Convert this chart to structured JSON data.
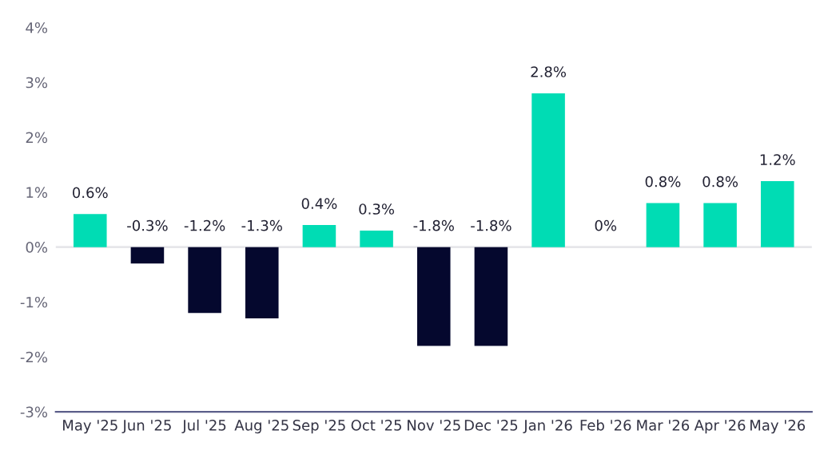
{
  "chart_data": {
    "type": "bar",
    "categories": [
      "May '25",
      "Jun '25",
      "Jul '25",
      "Aug '25",
      "Sep '25",
      "Oct '25",
      "Nov '25",
      "Dec '25",
      "Jan '26",
      "Feb '26",
      "Mar '26",
      "Apr '26",
      "May '26"
    ],
    "values": [
      0.6,
      -0.3,
      -1.2,
      -1.3,
      0.4,
      0.3,
      -1.8,
      -1.8,
      2.8,
      0,
      0.8,
      0.8,
      1.2
    ],
    "colors": [
      "#00dcb4",
      "#05082e",
      "#05082e",
      "#05082e",
      "#00dcb4",
      "#00dcb4",
      "#05082e",
      "#05082e",
      "#00dcb4",
      "#00dcb4",
      "#00dcb4",
      "#00dcb4",
      "#00dcb4"
    ],
    "value_labels": [
      "0.6%",
      "-0.3%",
      "-1.2%",
      "-1.3%",
      "0.4%",
      "0.3%",
      "-1.8%",
      "-1.8%",
      "2.8%",
      "0%",
      "0.8%",
      "0.8%",
      "1.2%"
    ],
    "ylim": [
      -3,
      4
    ],
    "yticks": [
      {
        "value": -3,
        "label": "-3%"
      },
      {
        "value": -2,
        "label": "-2%"
      },
      {
        "value": -1,
        "label": "-1%"
      },
      {
        "value": 0,
        "label": "0%"
      },
      {
        "value": 1,
        "label": "1%"
      },
      {
        "value": 2,
        "label": "2%"
      },
      {
        "value": 3,
        "label": "3%"
      },
      {
        "value": 4,
        "label": "4%"
      }
    ],
    "ref_lines": [
      {
        "axis": "y",
        "value": 0,
        "color": "#e6e6ea"
      }
    ],
    "grid": false,
    "legend": false
  }
}
